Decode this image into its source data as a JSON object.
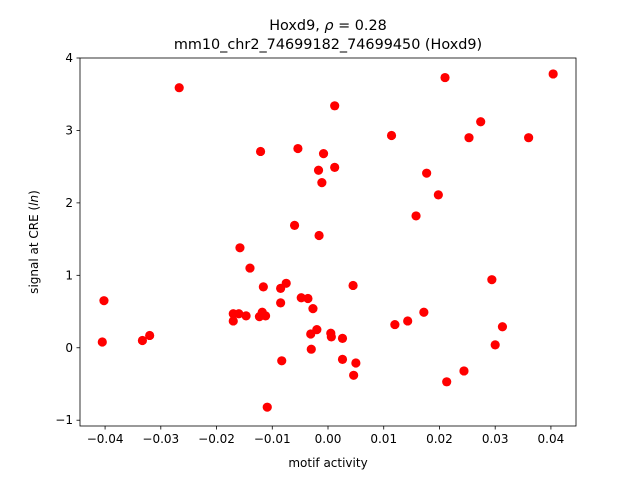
{
  "chart_data": {
    "type": "scatter",
    "title_line1": "Hoxd9, ρ = 0.28",
    "title_line2": "mm10_chr2_74699182_74699450 (Hoxd9)",
    "xlabel": "motif activity",
    "ylabel": "signal at CRE (ln)",
    "xlim": [
      -0.0445,
      0.0445
    ],
    "ylim": [
      -1.08,
      4.0
    ],
    "xticks": [
      -0.04,
      -0.03,
      -0.02,
      -0.01,
      0.0,
      0.01,
      0.02,
      0.03,
      0.04
    ],
    "xtick_labels": [
      "−0.04",
      "−0.03",
      "−0.02",
      "−0.01",
      "0.00",
      "0.01",
      "0.02",
      "0.03",
      "0.04"
    ],
    "yticks": [
      -1,
      0,
      1,
      2,
      3,
      4
    ],
    "ytick_labels": [
      "−1",
      "0",
      "1",
      "2",
      "3",
      "4"
    ],
    "grid": false,
    "marker_color": "#ff0000",
    "points": [
      {
        "x": -0.0405,
        "y": 0.08
      },
      {
        "x": -0.0402,
        "y": 0.65
      },
      {
        "x": -0.0333,
        "y": 0.1
      },
      {
        "x": -0.032,
        "y": 0.17
      },
      {
        "x": -0.0267,
        "y": 3.59
      },
      {
        "x": -0.017,
        "y": 0.37
      },
      {
        "x": -0.017,
        "y": 0.47
      },
      {
        "x": -0.016,
        "y": 0.47
      },
      {
        "x": -0.0158,
        "y": 1.38
      },
      {
        "x": -0.0147,
        "y": 0.44
      },
      {
        "x": -0.014,
        "y": 1.1
      },
      {
        "x": -0.0123,
        "y": 0.43
      },
      {
        "x": -0.0121,
        "y": 2.71
      },
      {
        "x": -0.0118,
        "y": 0.49
      },
      {
        "x": -0.0116,
        "y": 0.84
      },
      {
        "x": -0.0112,
        "y": 0.44
      },
      {
        "x": -0.0109,
        "y": -0.82
      },
      {
        "x": -0.0085,
        "y": 0.82
      },
      {
        "x": -0.0085,
        "y": 0.62
      },
      {
        "x": -0.0083,
        "y": -0.18
      },
      {
        "x": -0.0075,
        "y": 0.89
      },
      {
        "x": -0.006,
        "y": 1.69
      },
      {
        "x": -0.0054,
        "y": 2.75
      },
      {
        "x": -0.0048,
        "y": 0.69
      },
      {
        "x": -0.0036,
        "y": 0.68
      },
      {
        "x": -0.0031,
        "y": 0.19
      },
      {
        "x": -0.003,
        "y": -0.02
      },
      {
        "x": -0.0027,
        "y": 0.54
      },
      {
        "x": -0.002,
        "y": 0.25
      },
      {
        "x": -0.0017,
        "y": 2.45
      },
      {
        "x": -0.0016,
        "y": 1.55
      },
      {
        "x": -0.0011,
        "y": 2.28
      },
      {
        "x": -0.0008,
        "y": 2.68
      },
      {
        "x": 0.0005,
        "y": 0.2
      },
      {
        "x": 0.0006,
        "y": 0.15
      },
      {
        "x": 0.0012,
        "y": 3.34
      },
      {
        "x": 0.0012,
        "y": 2.49
      },
      {
        "x": 0.0026,
        "y": -0.16
      },
      {
        "x": 0.0026,
        "y": 0.13
      },
      {
        "x": 0.0045,
        "y": 0.86
      },
      {
        "x": 0.0046,
        "y": -0.38
      },
      {
        "x": 0.005,
        "y": -0.21
      },
      {
        "x": 0.0114,
        "y": 2.93
      },
      {
        "x": 0.012,
        "y": 0.32
      },
      {
        "x": 0.0143,
        "y": 0.37
      },
      {
        "x": 0.0158,
        "y": 1.82
      },
      {
        "x": 0.0172,
        "y": 0.49
      },
      {
        "x": 0.0177,
        "y": 2.41
      },
      {
        "x": 0.0198,
        "y": 2.11
      },
      {
        "x": 0.021,
        "y": 3.73
      },
      {
        "x": 0.0213,
        "y": -0.47
      },
      {
        "x": 0.0244,
        "y": -0.32
      },
      {
        "x": 0.0253,
        "y": 2.9
      },
      {
        "x": 0.0274,
        "y": 3.12
      },
      {
        "x": 0.0294,
        "y": 0.94
      },
      {
        "x": 0.03,
        "y": 0.04
      },
      {
        "x": 0.0313,
        "y": 0.29
      },
      {
        "x": 0.036,
        "y": 2.9
      },
      {
        "x": 0.0404,
        "y": 3.78
      }
    ]
  }
}
